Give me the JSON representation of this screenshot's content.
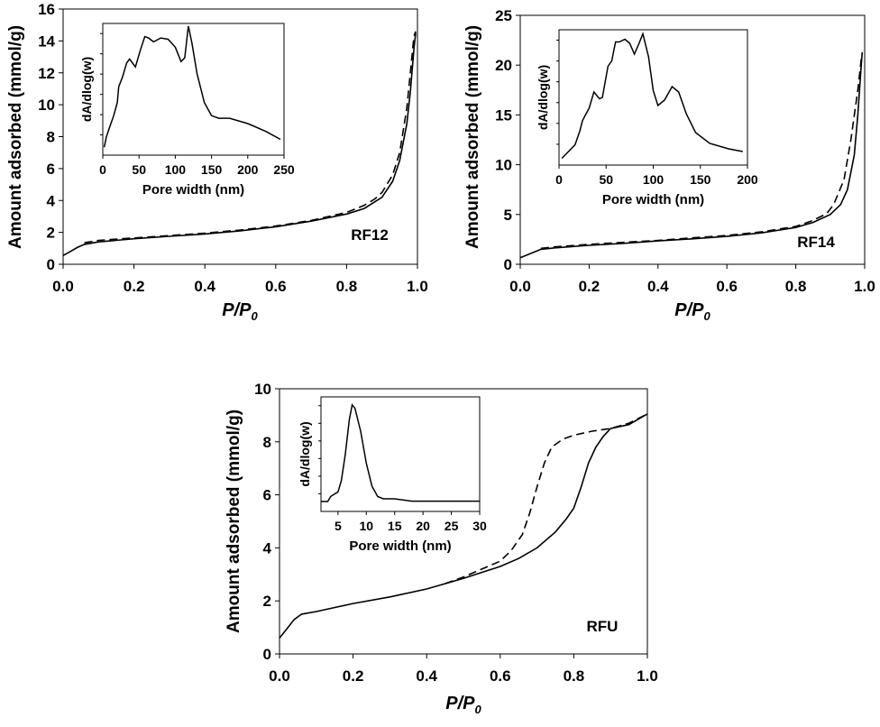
{
  "chart_data": [
    {
      "type": "line",
      "label": "RF12",
      "xlabel": {
        "main": "P/P",
        "sub": "0"
      },
      "ylabel": "Amount adsorbed (mmol/g)",
      "xlim": [
        0,
        1.0
      ],
      "ylim": [
        0,
        16
      ],
      "xticks": [
        "0.0",
        "0.2",
        "0.4",
        "0.6",
        "0.8",
        "1.0"
      ],
      "yticks": [
        "0",
        "2",
        "4",
        "6",
        "8",
        "10",
        "12",
        "14",
        "16"
      ],
      "grid": false,
      "series": [
        {
          "style": "solid",
          "x": [
            0,
            0.02,
            0.04,
            0.06,
            0.1,
            0.2,
            0.3,
            0.4,
            0.5,
            0.6,
            0.7,
            0.8,
            0.85,
            0.9,
            0.93,
            0.95,
            0.97,
            0.98,
            0.99,
            0.995
          ],
          "y": [
            0.55,
            0.8,
            1.05,
            1.25,
            1.4,
            1.6,
            1.75,
            1.9,
            2.1,
            2.35,
            2.7,
            3.15,
            3.5,
            4.2,
            5.2,
            6.5,
            8.8,
            10.8,
            13.5,
            14.5
          ]
        },
        {
          "style": "dashed",
          "x": [
            0.06,
            0.1,
            0.2,
            0.3,
            0.4,
            0.5,
            0.6,
            0.7,
            0.8,
            0.85,
            0.88,
            0.9,
            0.93,
            0.95,
            0.97,
            0.98,
            0.99,
            0.995
          ],
          "y": [
            1.35,
            1.5,
            1.65,
            1.8,
            1.95,
            2.15,
            2.4,
            2.75,
            3.25,
            3.7,
            4.1,
            4.5,
            5.6,
            7.0,
            9.8,
            12.0,
            14.3,
            14.6
          ]
        }
      ],
      "inset": {
        "xlabel": "Pore width (nm)",
        "ylabel": "dA/dlog(w)",
        "xlim": [
          0,
          250
        ],
        "ylim": [
          0,
          1
        ],
        "xticks": [
          "0",
          "50",
          "100",
          "150",
          "200",
          "250"
        ],
        "x": [
          2,
          5,
          10,
          15,
          20,
          22,
          27,
          33,
          37,
          45,
          52,
          58,
          63,
          70,
          80,
          90,
          100,
          108,
          113,
          118,
          123,
          130,
          140,
          150,
          160,
          175,
          200,
          225,
          245
        ],
        "y": [
          0.06,
          0.14,
          0.22,
          0.3,
          0.4,
          0.52,
          0.59,
          0.7,
          0.73,
          0.67,
          0.8,
          0.9,
          0.89,
          0.86,
          0.89,
          0.88,
          0.82,
          0.71,
          0.74,
          0.98,
          0.85,
          0.62,
          0.4,
          0.3,
          0.28,
          0.28,
          0.24,
          0.18,
          0.12
        ]
      }
    },
    {
      "type": "line",
      "label": "RF14",
      "xlabel": {
        "main": "P/P",
        "sub": "0"
      },
      "ylabel": "Amount adsorbed (mmol/g)",
      "xlim": [
        0,
        1.0
      ],
      "ylim": [
        0,
        25
      ],
      "xticks": [
        "0.0",
        "0.2",
        "0.4",
        "0.6",
        "0.8",
        "1.0"
      ],
      "yticks": [
        "0",
        "5",
        "10",
        "15",
        "20",
        "25"
      ],
      "grid": false,
      "series": [
        {
          "style": "solid",
          "x": [
            0,
            0.06,
            0.1,
            0.2,
            0.3,
            0.4,
            0.5,
            0.6,
            0.7,
            0.8,
            0.85,
            0.9,
            0.93,
            0.95,
            0.97,
            0.98,
            0.99,
            0.993
          ],
          "y": [
            0.65,
            1.5,
            1.65,
            1.9,
            2.1,
            2.35,
            2.55,
            2.8,
            3.15,
            3.7,
            4.2,
            5.0,
            6.0,
            7.5,
            11,
            15,
            20,
            21.3
          ]
        },
        {
          "style": "dashed",
          "x": [
            0.06,
            0.1,
            0.2,
            0.3,
            0.4,
            0.5,
            0.6,
            0.7,
            0.8,
            0.85,
            0.89,
            0.91,
            0.94,
            0.96,
            0.98,
            0.99,
            0.993
          ],
          "y": [
            1.6,
            1.75,
            2.0,
            2.2,
            2.4,
            2.65,
            2.9,
            3.25,
            3.8,
            4.4,
            5.1,
            6.0,
            8.5,
            12.5,
            17.5,
            20.6,
            21.2
          ]
        }
      ],
      "inset": {
        "xlabel": "Pore width (nm)",
        "ylabel": "dA/dlog(w)",
        "xlim": [
          0,
          200
        ],
        "ylim": [
          0,
          1
        ],
        "xticks": [
          "0",
          "50",
          "100",
          "150",
          "200"
        ],
        "x": [
          3,
          10,
          17,
          22,
          25,
          32,
          37,
          43,
          46,
          52,
          56,
          60,
          64,
          70,
          75,
          80,
          85,
          89,
          95,
          100,
          105,
          112,
          120,
          127,
          135,
          145,
          160,
          180,
          195
        ],
        "y": [
          0.05,
          0.1,
          0.15,
          0.25,
          0.33,
          0.42,
          0.54,
          0.49,
          0.5,
          0.73,
          0.77,
          0.91,
          0.91,
          0.93,
          0.9,
          0.82,
          0.9,
          0.97,
          0.8,
          0.55,
          0.44,
          0.48,
          0.58,
          0.54,
          0.38,
          0.24,
          0.16,
          0.12,
          0.1
        ]
      }
    },
    {
      "type": "line",
      "label": "RFU",
      "xlabel": {
        "main": "P/P",
        "sub": "0"
      },
      "ylabel": "Amount adsorbed (mmol/g)",
      "xlim": [
        0,
        1.0
      ],
      "ylim": [
        0,
        10
      ],
      "xticks": [
        "0.0",
        "0.2",
        "0.4",
        "0.6",
        "0.8",
        "1.0"
      ],
      "yticks": [
        "0",
        "2",
        "4",
        "6",
        "8",
        "10"
      ],
      "grid": false,
      "series": [
        {
          "style": "solid",
          "x": [
            0,
            0.02,
            0.04,
            0.06,
            0.1,
            0.2,
            0.3,
            0.4,
            0.5,
            0.6,
            0.65,
            0.7,
            0.75,
            0.78,
            0.8,
            0.82,
            0.84,
            0.86,
            0.88,
            0.9,
            0.95,
            1.0
          ],
          "y": [
            0.6,
            0.95,
            1.3,
            1.5,
            1.6,
            1.9,
            2.15,
            2.45,
            2.85,
            3.3,
            3.6,
            4.0,
            4.6,
            5.1,
            5.5,
            6.3,
            7.2,
            7.8,
            8.2,
            8.5,
            8.65,
            9.05
          ]
        },
        {
          "style": "dashed",
          "x": [
            0.45,
            0.5,
            0.55,
            0.6,
            0.63,
            0.66,
            0.68,
            0.7,
            0.72,
            0.74,
            0.77,
            0.8,
            0.85,
            0.9,
            0.95,
            1.0
          ],
          "y": [
            2.65,
            2.9,
            3.2,
            3.5,
            3.9,
            4.5,
            5.3,
            6.3,
            7.2,
            7.8,
            8.1,
            8.25,
            8.4,
            8.5,
            8.7,
            9.05
          ]
        }
      ],
      "inset": {
        "xlabel": "Pore width (nm)",
        "ylabel": "dA/dlog(w)",
        "xlim": [
          2,
          30
        ],
        "ylim": [
          0,
          1
        ],
        "xticks": [
          "5",
          "10",
          "15",
          "20",
          "25",
          "30"
        ],
        "x": [
          2,
          3.2,
          3.7,
          4.3,
          5,
          5.6,
          6.3,
          7,
          7.5,
          8,
          9,
          10,
          11,
          12,
          13,
          15,
          18,
          30
        ],
        "y": [
          0.087,
          0.087,
          0.13,
          0.15,
          0.17,
          0.27,
          0.5,
          0.8,
          0.93,
          0.9,
          0.7,
          0.42,
          0.22,
          0.13,
          0.11,
          0.11,
          0.09,
          0.09
        ]
      }
    }
  ]
}
